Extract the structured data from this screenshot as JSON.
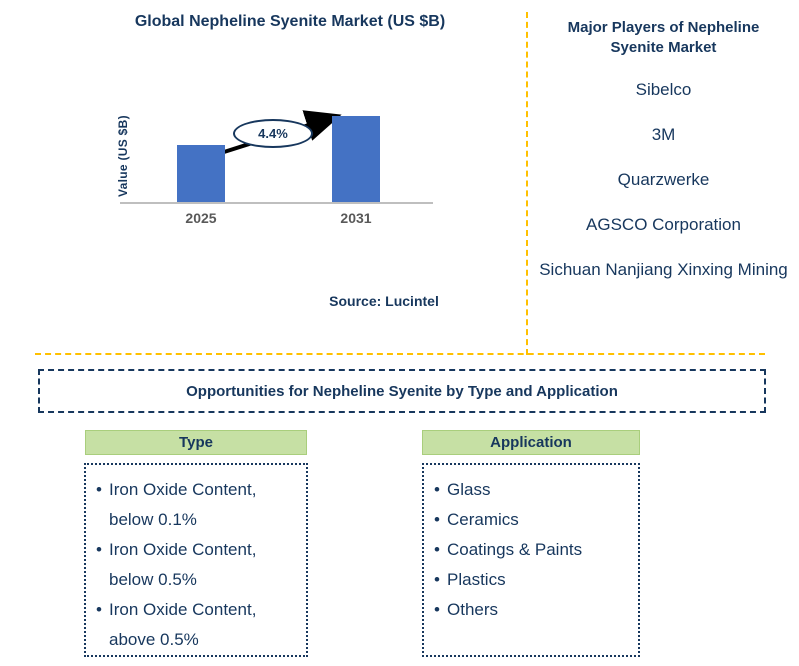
{
  "colors": {
    "navy_text": "#17375D",
    "bar_blue": "#4472C4",
    "divider_yellow": "#FFC000",
    "green_header_bg": "#C6E0A4",
    "axis_gray": "#BFBFBF",
    "year_label_gray": "#595959"
  },
  "chart": {
    "title": "Global Nepheline Syenite Market (US $B)",
    "y_axis_label": "Value (US $B)",
    "growth_label": "4.4%",
    "source": "Source: Lucintel"
  },
  "chart_data": {
    "type": "bar",
    "title": "Global Nepheline Syenite Market (US $B)",
    "categories": [
      "2025",
      "2031"
    ],
    "values": [
      57,
      86
    ],
    "values_unit": "relative-bar-height-px (no numeric axis shown)",
    "xlabel": "",
    "ylabel": "Value (US $B)",
    "annotation": "4.4%",
    "annotation_meaning": "growth from 2025 to 2031",
    "grid": false,
    "legend": false,
    "bar_color": "#4472C4",
    "source": "Source: Lucintel"
  },
  "major_players": {
    "title": "Major Players of Nepheline Syenite Market",
    "items": [
      "Sibelco",
      "3M",
      "Quarzwerke",
      "AGSCO Corporation",
      "Sichuan Nanjiang Xinxing Mining"
    ]
  },
  "opportunities": {
    "title": "Opportunities for Nepheline Syenite by Type and Application",
    "columns": [
      {
        "header": "Type",
        "items": [
          "Iron Oxide Content, below 0.1%",
          "Iron Oxide Content, below 0.5%",
          "Iron Oxide Content, above 0.5%"
        ]
      },
      {
        "header": "Application",
        "items": [
          "Glass",
          "Ceramics",
          "Coatings & Paints",
          "Plastics",
          "Others"
        ]
      }
    ]
  }
}
